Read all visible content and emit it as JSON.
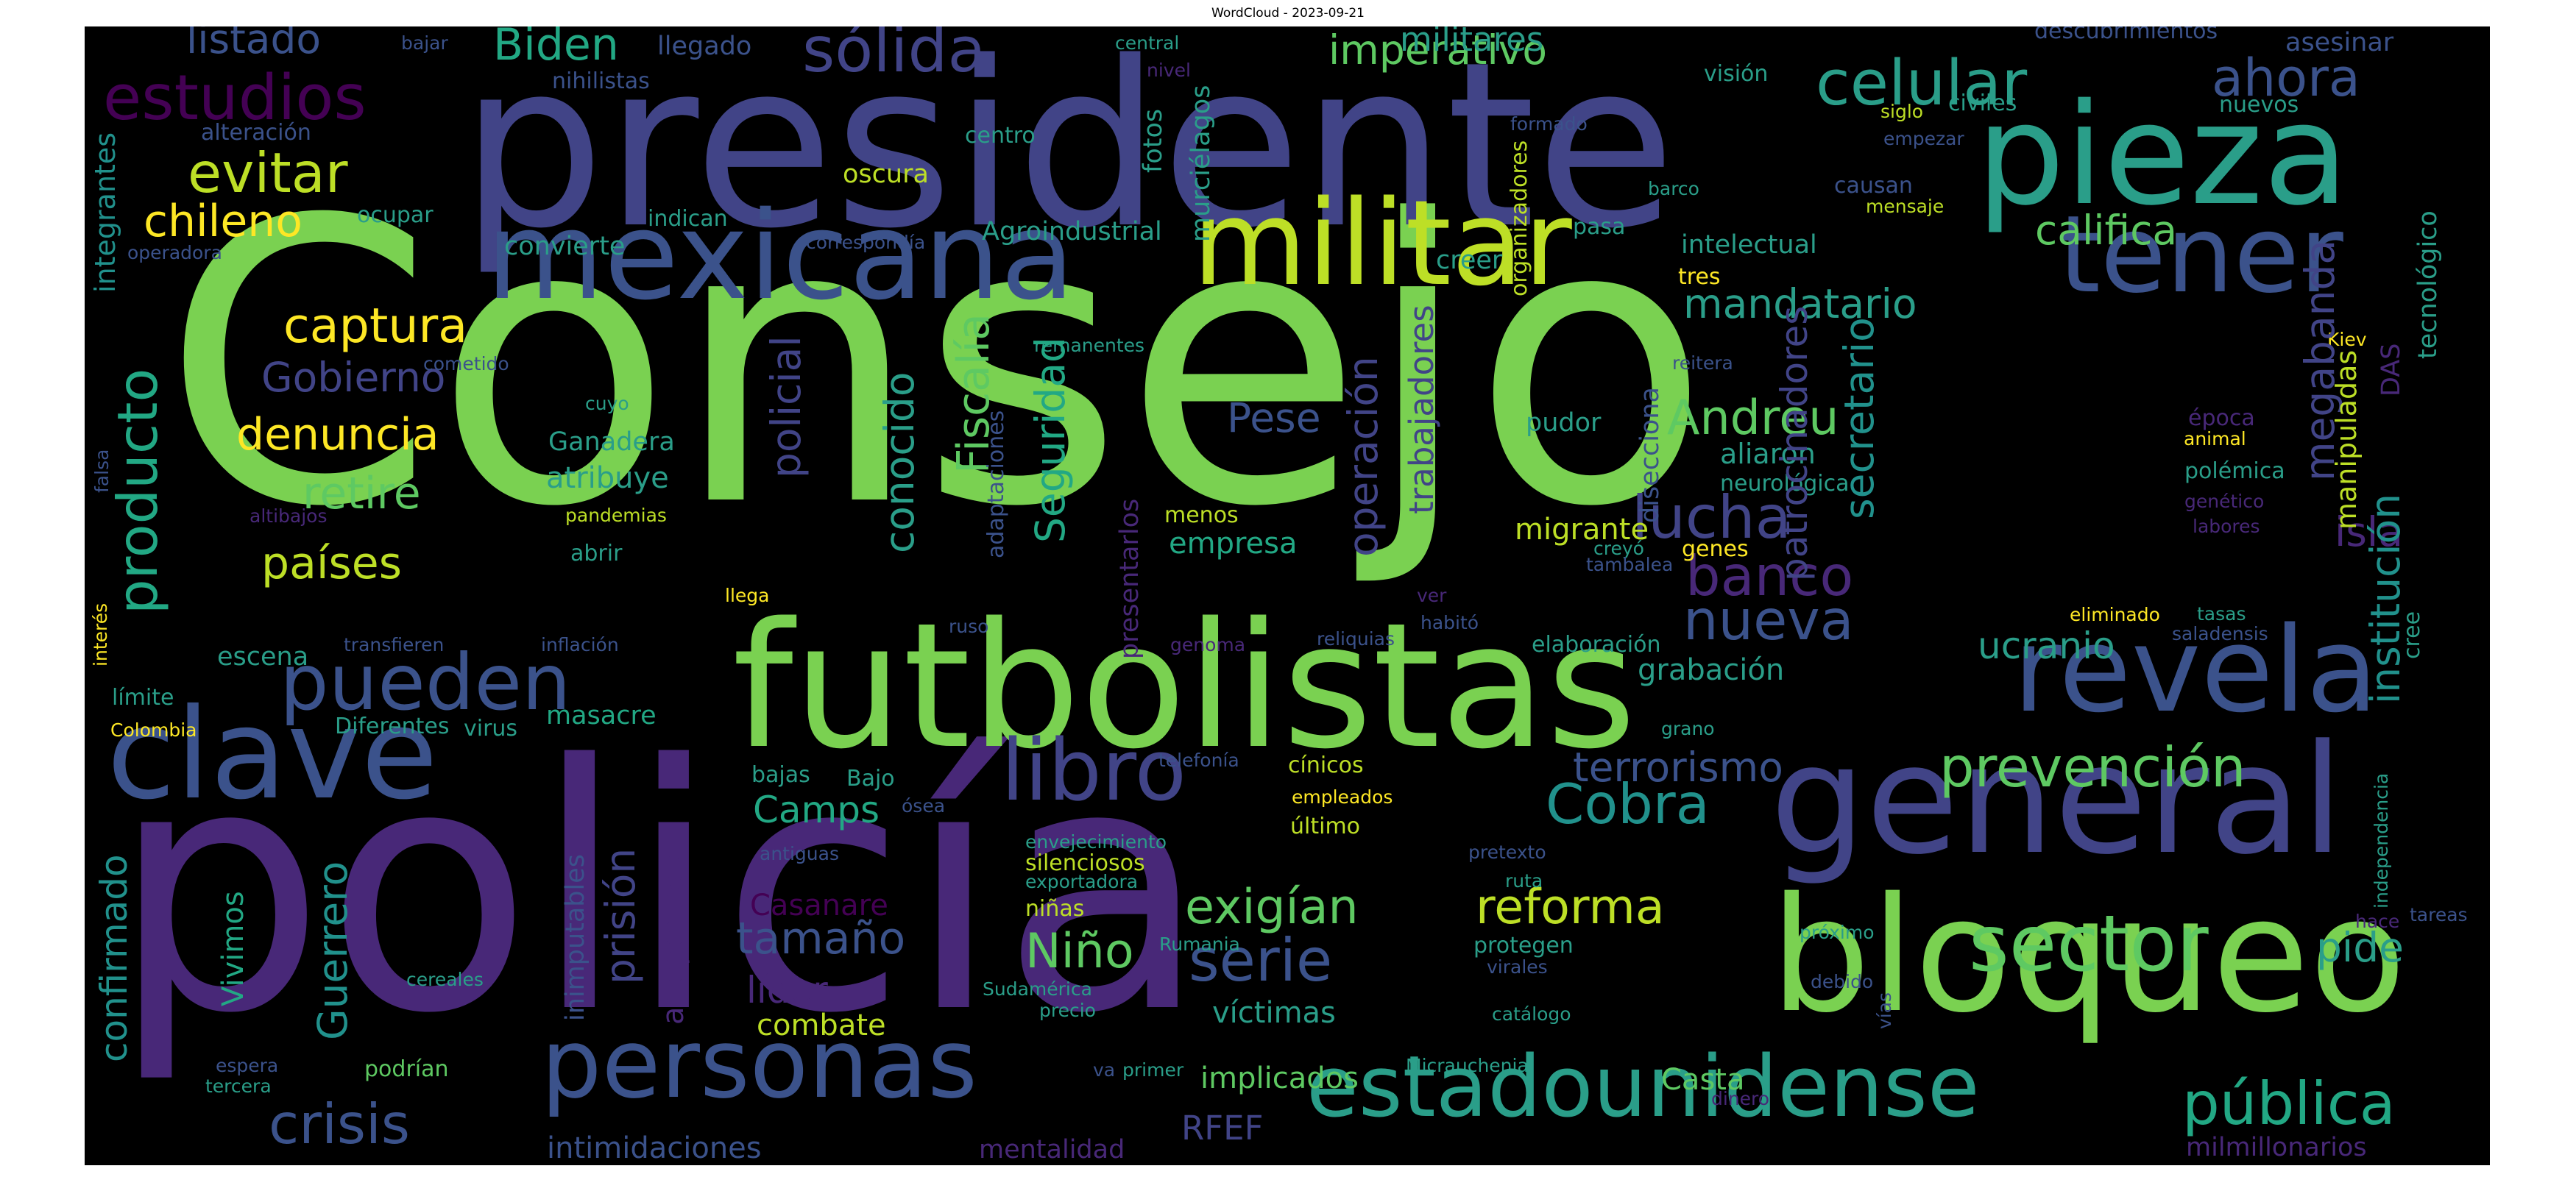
{
  "title": "WordCloud - 2023-09-21",
  "colors": {
    "background": "#000000",
    "green": "#7AD151",
    "lime": "#BDDF26",
    "yellow": "#FDE725",
    "teal": "#22A884",
    "sea": "#2A9E89",
    "cyan": "#21918C",
    "deepcyan": "#1F7F8E",
    "steel": "#3B528B",
    "blue": "#414487",
    "indigo": "#482878",
    "purple": "#440154",
    "mint": "#5EC962"
  },
  "words": [
    {
      "text": "Consejo",
      "color": "green"
    },
    {
      "text": "policía",
      "color": "indigo"
    },
    {
      "text": "presidente",
      "color": "blue"
    },
    {
      "text": "futbolistas",
      "color": "green"
    },
    {
      "text": "general",
      "color": "blue"
    },
    {
      "text": "bloqueo",
      "color": "green"
    },
    {
      "text": "militar",
      "color": "lime"
    },
    {
      "text": "mexicana",
      "color": "steel"
    },
    {
      "text": "pieza",
      "color": "sea"
    },
    {
      "text": "clave",
      "color": "steel"
    },
    {
      "text": "tener",
      "color": "steel"
    },
    {
      "text": "revela",
      "color": "steel"
    },
    {
      "text": "estadounidense",
      "color": "sea"
    },
    {
      "text": "personas",
      "color": "steel"
    },
    {
      "text": "sector",
      "color": "mint"
    },
    {
      "text": "pueden",
      "color": "steel"
    },
    {
      "text": "libro",
      "color": "blue"
    },
    {
      "text": "sólida",
      "color": "blue"
    },
    {
      "text": "celular",
      "color": "sea"
    },
    {
      "text": "estudios",
      "color": "purple"
    },
    {
      "text": "lucha",
      "color": "blue"
    },
    {
      "text": "nueva",
      "color": "steel"
    },
    {
      "text": "banco",
      "color": "indigo"
    },
    {
      "text": "prevención",
      "color": "mint"
    },
    {
      "text": "pública",
      "color": "teal"
    },
    {
      "text": "ahora",
      "color": "steel"
    },
    {
      "text": "Cobra",
      "color": "cyan"
    },
    {
      "text": "evitar",
      "color": "lime"
    },
    {
      "text": "serie",
      "color": "steel"
    },
    {
      "text": "crisis",
      "color": "steel"
    },
    {
      "text": "terrorismo",
      "color": "steel"
    },
    {
      "text": "reforma",
      "color": "lime"
    },
    {
      "text": "exigían",
      "color": "mint"
    },
    {
      "text": "imperativo",
      "color": "mint"
    },
    {
      "text": "califica",
      "color": "mint"
    },
    {
      "text": "captura",
      "color": "yellow"
    },
    {
      "text": "tamaño",
      "color": "steel"
    },
    {
      "text": "listado",
      "color": "steel"
    },
    {
      "text": "Biden",
      "color": "teal"
    },
    {
      "text": "Niño",
      "color": "mint"
    },
    {
      "text": "Andreu",
      "color": "mint"
    },
    {
      "text": "mandatario",
      "color": "sea"
    },
    {
      "text": "Gobierno",
      "color": "blue"
    },
    {
      "text": "denuncia",
      "color": "yellow"
    },
    {
      "text": "países",
      "color": "lime"
    },
    {
      "text": "retire",
      "color": "mint"
    },
    {
      "text": "chileno",
      "color": "yellow"
    },
    {
      "text": "pide",
      "color": "sea"
    },
    {
      "text": "isla",
      "color": "indigo"
    },
    {
      "text": "Camps",
      "color": "teal"
    },
    {
      "text": "ucranio",
      "color": "sea"
    },
    {
      "text": "Pese",
      "color": "steel"
    },
    {
      "text": "militares",
      "color": "sea"
    },
    {
      "text": "implicados",
      "color": "mint"
    },
    {
      "text": "RFEF",
      "color": "blue"
    },
    {
      "text": "líder",
      "color": "indigo"
    },
    {
      "text": "grabación",
      "color": "sea"
    },
    {
      "text": "migrante",
      "color": "lime"
    },
    {
      "text": "Casta",
      "color": "mint"
    },
    {
      "text": "combate",
      "color": "lime"
    },
    {
      "text": "empresa",
      "color": "teal"
    },
    {
      "text": "víctimas",
      "color": "sea"
    },
    {
      "text": "masacre",
      "color": "teal"
    },
    {
      "text": "escena",
      "color": "sea"
    },
    {
      "text": "Casanare",
      "color": "purple"
    },
    {
      "text": "intimidaciones",
      "color": "steel"
    },
    {
      "text": "aliaron",
      "color": "sea"
    },
    {
      "text": "atribuye",
      "color": "sea"
    },
    {
      "text": "Ganadera",
      "color": "sea"
    },
    {
      "text": "Agroindustrial",
      "color": "sea"
    },
    {
      "text": "milmillonarios",
      "color": "indigo"
    },
    {
      "text": "pudor",
      "color": "sea"
    },
    {
      "text": "Bajo",
      "color": "sea"
    },
    {
      "text": "creer",
      "color": "sea"
    },
    {
      "text": "mentalidad",
      "color": "indigo"
    },
    {
      "text": "intelectual",
      "color": "sea"
    },
    {
      "text": "oscura",
      "color": "lime"
    },
    {
      "text": "época",
      "color": "indigo"
    },
    {
      "text": "polémica",
      "color": "sea"
    },
    {
      "text": "neurológica",
      "color": "sea"
    },
    {
      "text": "elaboración",
      "color": "sea"
    },
    {
      "text": "convierte",
      "color": "sea"
    },
    {
      "text": "pasa",
      "color": "sea"
    },
    {
      "text": "Diferentes",
      "color": "sea"
    },
    {
      "text": "virus",
      "color": "sea"
    },
    {
      "text": "límite",
      "color": "sea"
    },
    {
      "text": "ocupar",
      "color": "sea"
    },
    {
      "text": "abrir",
      "color": "sea"
    },
    {
      "text": "centro",
      "color": "sea"
    },
    {
      "text": "indican",
      "color": "sea"
    },
    {
      "text": "bajas",
      "color": "sea"
    },
    {
      "text": "cínicos",
      "color": "lime"
    },
    {
      "text": "último",
      "color": "lime"
    },
    {
      "text": "empleados",
      "color": "yellow"
    },
    {
      "text": "tres",
      "color": "yellow"
    },
    {
      "text": "menos",
      "color": "lime"
    },
    {
      "text": "genes",
      "color": "yellow"
    },
    {
      "text": "protegen",
      "color": "sea"
    },
    {
      "text": "niñas",
      "color": "lime"
    },
    {
      "text": "silenciosos",
      "color": "lime"
    },
    {
      "text": "exportadora",
      "color": "sea"
    },
    {
      "text": "envejecimiento",
      "color": "sea"
    },
    {
      "text": "causan",
      "color": "steel"
    },
    {
      "text": "llegado",
      "color": "steel"
    },
    {
      "text": "nihilistas",
      "color": "steel"
    },
    {
      "text": "asesinar",
      "color": "steel"
    },
    {
      "text": "descubrimientos",
      "color": "steel"
    },
    {
      "text": "civiles",
      "color": "sea"
    },
    {
      "text": "nuevos",
      "color": "sea"
    },
    {
      "text": "Colombia",
      "color": "yellow"
    },
    {
      "text": "alteración",
      "color": "steel"
    },
    {
      "text": "correspondía",
      "color": "steel"
    },
    {
      "text": "operadora",
      "color": "steel"
    },
    {
      "text": "bajar",
      "color": "steel"
    },
    {
      "text": "central",
      "color": "sea"
    },
    {
      "text": "nivel",
      "color": "indigo"
    },
    {
      "text": "formado",
      "color": "steel"
    },
    {
      "text": "visión",
      "color": "sea"
    },
    {
      "text": "siglo",
      "color": "lime"
    },
    {
      "text": "empezar",
      "color": "steel"
    },
    {
      "text": "barco",
      "color": "sea"
    },
    {
      "text": "mensaje",
      "color": "lime"
    },
    {
      "text": "remanentes",
      "color": "sea"
    },
    {
      "text": "cometido",
      "color": "steel"
    },
    {
      "text": "reitera",
      "color": "steel"
    },
    {
      "text": "cuyo",
      "color": "sea"
    },
    {
      "text": "pandemias",
      "color": "lime"
    },
    {
      "text": "altibajos",
      "color": "indigo"
    },
    {
      "text": "creyó",
      "color": "sea"
    },
    {
      "text": "tambalea",
      "color": "steel"
    },
    {
      "text": "llega",
      "color": "yellow"
    },
    {
      "text": "ver",
      "color": "indigo"
    },
    {
      "text": "habitó",
      "color": "steel"
    },
    {
      "text": "reliquias",
      "color": "steel"
    },
    {
      "text": "ruso",
      "color": "steel"
    },
    {
      "text": "genoma",
      "color": "indigo"
    },
    {
      "text": "inflación",
      "color": "steel"
    },
    {
      "text": "transfieren",
      "color": "steel"
    },
    {
      "text": "grano",
      "color": "sea"
    },
    {
      "text": "telefonía",
      "color": "steel"
    },
    {
      "text": "ósea",
      "color": "steel"
    },
    {
      "text": "antiguas",
      "color": "steel"
    },
    {
      "text": "pretexto",
      "color": "steel"
    },
    {
      "text": "ruta",
      "color": "sea"
    },
    {
      "text": "Rumania",
      "color": "sea"
    },
    {
      "text": "Sudamérica",
      "color": "sea"
    },
    {
      "text": "precio",
      "color": "sea"
    },
    {
      "text": "virales",
      "color": "steel"
    },
    {
      "text": "catálogo",
      "color": "sea"
    },
    {
      "text": "próximo",
      "color": "sea"
    },
    {
      "text": "debido",
      "color": "steel"
    },
    {
      "text": "dinero",
      "color": "indigo"
    },
    {
      "text": "cereales",
      "color": "sea"
    },
    {
      "text": "espera",
      "color": "steel"
    },
    {
      "text": "tercera",
      "color": "sea"
    },
    {
      "text": "podrían",
      "color": "mint"
    },
    {
      "text": "va",
      "color": "steel"
    },
    {
      "text": "primer",
      "color": "sea"
    },
    {
      "text": "Micrauchenia",
      "color": "sea"
    },
    {
      "text": "tasas",
      "color": "sea"
    },
    {
      "text": "saladensis",
      "color": "steel"
    },
    {
      "text": "eliminado",
      "color": "yellow"
    },
    {
      "text": "animal",
      "color": "yellow"
    },
    {
      "text": "labores",
      "color": "indigo"
    },
    {
      "text": "genético",
      "color": "indigo"
    },
    {
      "text": "hace",
      "color": "indigo"
    },
    {
      "text": "tareas",
      "color": "steel"
    },
    {
      "text": "Kiev",
      "color": "yellow"
    },
    {
      "text": "producto",
      "color": "teal"
    },
    {
      "text": "confirmado",
      "color": "cyan"
    },
    {
      "text": "Guerrero",
      "color": "cyan"
    },
    {
      "text": "Vivimos",
      "color": "teal"
    },
    {
      "text": "integrantes",
      "color": "cyan"
    },
    {
      "text": "interés",
      "color": "yellow"
    },
    {
      "text": "falsa",
      "color": "steel"
    },
    {
      "text": "prisión",
      "color": "blue"
    },
    {
      "text": "arrepentido",
      "color": "indigo"
    },
    {
      "text": "inimputables",
      "color": "steel"
    },
    {
      "text": "policial",
      "color": "blue"
    },
    {
      "text": "conocido",
      "color": "sea"
    },
    {
      "text": "Fiscalía",
      "color": "mint"
    },
    {
      "text": "Seguridad",
      "color": "teal"
    },
    {
      "text": "adaptaciones",
      "color": "steel"
    },
    {
      "text": "presentarlos",
      "color": "indigo"
    },
    {
      "text": "fotos",
      "color": "sea"
    },
    {
      "text": "murciélagos",
      "color": "sea"
    },
    {
      "text": "organizadores",
      "color": "lime"
    },
    {
      "text": "operación",
      "color": "blue"
    },
    {
      "text": "trabajadores",
      "color": "blue"
    },
    {
      "text": "patrocinadores",
      "color": "blue"
    },
    {
      "text": "secretario",
      "color": "cyan"
    },
    {
      "text": "disecciona",
      "color": "steel"
    },
    {
      "text": "megabanda",
      "color": "blue"
    },
    {
      "text": "institución",
      "color": "cyan"
    },
    {
      "text": "tecnológico",
      "color": "sea"
    },
    {
      "text": "manipuladas",
      "color": "lime"
    },
    {
      "text": "DAS",
      "color": "indigo"
    },
    {
      "text": "cree",
      "color": "sea"
    },
    {
      "text": "independencia",
      "color": "sea"
    },
    {
      "text": "vías",
      "color": "steel"
    }
  ]
}
